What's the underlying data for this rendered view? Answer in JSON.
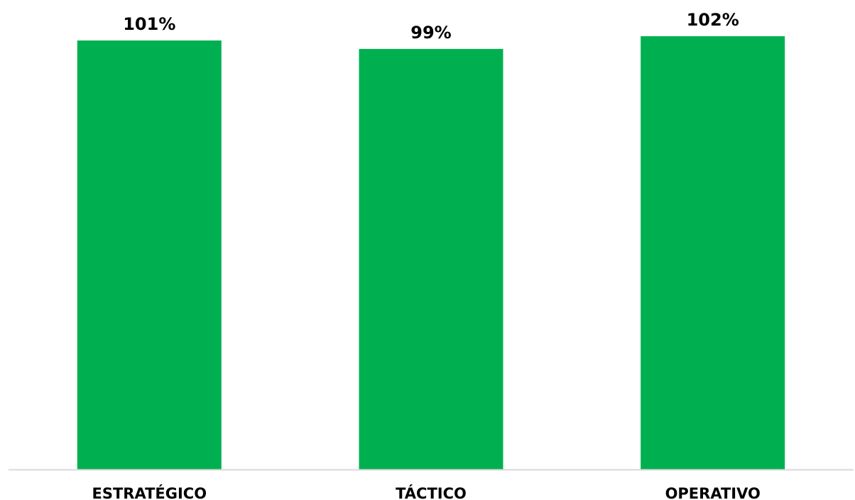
{
  "chart_data": {
    "type": "bar",
    "categories": [
      "ESTRATÉGICO",
      "TÁCTICO",
      "OPERATIVO"
    ],
    "values": [
      101,
      99,
      102
    ],
    "data_labels": [
      "101%",
      "99%",
      "102%"
    ],
    "title": "",
    "xlabel": "",
    "ylabel": "",
    "ylim": [
      0,
      103
    ],
    "grid": false,
    "legend": "none",
    "bar_color": "#00B050",
    "axis_color": "#D9D9D9"
  }
}
